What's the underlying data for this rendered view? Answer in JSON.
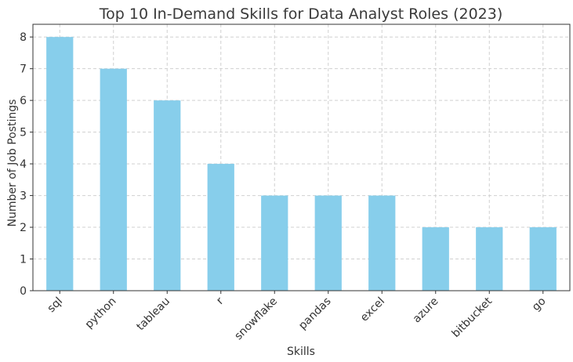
{
  "chart_data": {
    "type": "bar",
    "title": "Top 10 In-Demand Skills for Data Analyst Roles (2023)",
    "xlabel": "Skills",
    "ylabel": "Number of Job Postings",
    "categories": [
      "sql",
      "python",
      "tableau",
      "r",
      "snowflake",
      "pandas",
      "excel",
      "azure",
      "bitbucket",
      "go"
    ],
    "values": [
      8,
      7,
      6,
      4,
      3,
      3,
      3,
      2,
      2,
      2
    ],
    "ylim": [
      0,
      8.4
    ],
    "yticks": [
      0,
      1,
      2,
      3,
      4,
      5,
      6,
      7,
      8
    ],
    "grid": true,
    "bar_color": "#87ceeb",
    "legend": "none"
  }
}
